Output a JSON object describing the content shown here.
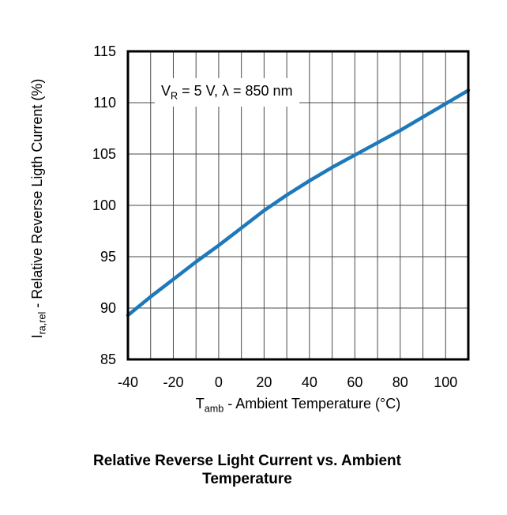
{
  "figure": {
    "y_axis": {
      "prefix": "I",
      "sub": "ra,rel",
      "rest": " - Relative Reverse Ligth Current (%)"
    },
    "x_axis": {
      "prefix": "T",
      "sub": "amb",
      "rest": " - Ambient Temperature (°C)"
    },
    "annotation": {
      "prefix": "V",
      "sub": "R",
      "rest": " = 5 V, λ = 850 nm"
    }
  },
  "chart_data": {
    "type": "line",
    "title": "Relative Reverse Light Current vs. Ambient Temperature",
    "xlabel": "Tamb - Ambient Temperature (°C)",
    "ylabel": "Ira,rel - Relative Reverse Ligth Current (%)",
    "annotation": "VR = 5 V, λ = 850 nm",
    "xlim": [
      -40,
      110
    ],
    "ylim": [
      85,
      115
    ],
    "x_grid_step": 10,
    "y_grid_step": 5,
    "xticks": [
      -40,
      -20,
      0,
      20,
      40,
      60,
      80,
      100
    ],
    "yticks": [
      85,
      90,
      95,
      100,
      105,
      110,
      115
    ],
    "grid": true,
    "legend": false,
    "series": [
      {
        "name": "relative-reverse-light-current",
        "color": "#1e79ba",
        "x": [
          -40,
          -30,
          -20,
          -10,
          0,
          10,
          20,
          30,
          40,
          50,
          60,
          70,
          80,
          90,
          100,
          110
        ],
        "y": [
          89.3,
          91.1,
          92.8,
          94.5,
          96.1,
          97.8,
          99.5,
          101.0,
          102.4,
          103.7,
          104.9,
          106.1,
          107.3,
          108.6,
          109.9,
          111.2
        ]
      }
    ],
    "colors": {
      "curve": "#1e79ba",
      "grid": "#4a4a4a",
      "border": "#000000",
      "text": "#000000"
    }
  }
}
